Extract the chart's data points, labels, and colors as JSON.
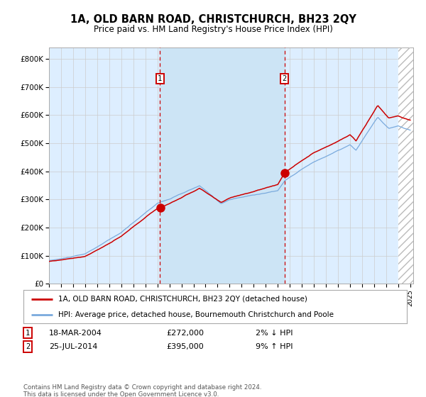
{
  "title": "1A, OLD BARN ROAD, CHRISTCHURCH, BH23 2QY",
  "subtitle": "Price paid vs. HM Land Registry's House Price Index (HPI)",
  "legend_line1": "1A, OLD BARN ROAD, CHRISTCHURCH, BH23 2QY (detached house)",
  "legend_line2": "HPI: Average price, detached house, Bournemouth Christchurch and Poole",
  "annotation1_date": "18-MAR-2004",
  "annotation1_price": "£272,000",
  "annotation1_hpi": "2% ↓ HPI",
  "annotation2_date": "25-JUL-2014",
  "annotation2_price": "£395,000",
  "annotation2_hpi": "9% ↑ HPI",
  "footer": "Contains HM Land Registry data © Crown copyright and database right 2024.\nThis data is licensed under the Open Government Licence v3.0.",
  "background_color": "#ffffff",
  "plot_bg_color": "#ddeeff",
  "shaded_region_color": "#cce4f5",
  "red_line_color": "#cc0000",
  "blue_line_color": "#7aaadd",
  "marker_color": "#cc0000",
  "vline1_color": "#cc0000",
  "vline2_color": "#cc0000",
  "grid_color": "#cccccc",
  "yticks": [
    0,
    100000,
    200000,
    300000,
    400000,
    500000,
    600000,
    700000,
    800000
  ],
  "ytick_labels": [
    "£0",
    "£100K",
    "£200K",
    "£300K",
    "£400K",
    "£500K",
    "£600K",
    "£700K",
    "£800K"
  ],
  "purchase1_year": 2004.21,
  "purchase1_value": 272000,
  "purchase2_year": 2014.56,
  "purchase2_value": 395000,
  "start_year": 1995,
  "end_year": 2025
}
